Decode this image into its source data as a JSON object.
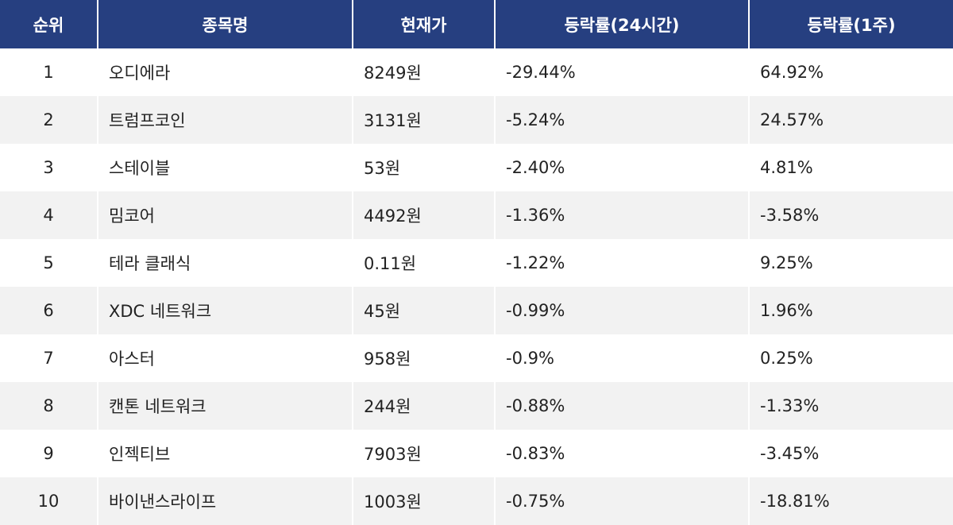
{
  "table": {
    "header": [
      "순위",
      "종목명",
      "현재가",
      "등락률(24시간)",
      "등락률(1주)"
    ],
    "rows": [
      [
        "1",
        "오디에라",
        "8249원",
        "-29.44%",
        "64.92%"
      ],
      [
        "2",
        "트럼프코인",
        "3131원",
        "-5.24%",
        "24.57%"
      ],
      [
        "3",
        "스테이블",
        "53원",
        "-2.40%",
        "4.81%"
      ],
      [
        "4",
        "밈코어",
        "4492원",
        "-1.36%",
        "-3.58%"
      ],
      [
        "5",
        "테라 클래식",
        "0.11원",
        "-1.22%",
        "9.25%"
      ],
      [
        "6",
        "XDC 네트워크",
        "45원",
        "-0.99%",
        "1.96%"
      ],
      [
        "7",
        "아스터",
        "958원",
        "-0.9%",
        "0.25%"
      ],
      [
        "8",
        "캔톤 네트워크",
        "244원",
        "-0.88%",
        "-1.33%"
      ],
      [
        "9",
        "인젝티브",
        "7903원",
        "-0.83%",
        "-3.45%"
      ],
      [
        "10",
        "바이낸스라이프",
        "1003원",
        "-0.75%",
        "-18.81%"
      ]
    ]
  }
}
